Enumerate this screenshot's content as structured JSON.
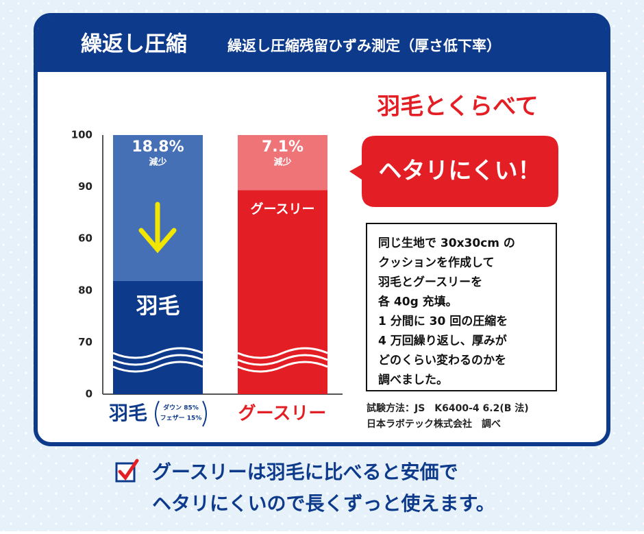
{
  "header": {
    "title": "繰返し圧縮",
    "subtitle": "繰返し圧縮残留ひずみ測定（厚さ低下率）"
  },
  "chart": {
    "axis_labels": [
      "100",
      "90",
      "60",
      "80",
      "70",
      "0"
    ],
    "bars": [
      {
        "name": "羽毛",
        "inner_label": "羽毛",
        "reduction": 18.8,
        "reduction_label": "18.8%",
        "reduction_text": "減少",
        "color": "#0d3a8a",
        "top_color": "#4670b6",
        "name_color": "#0d3a8a"
      },
      {
        "name": "グースリー",
        "inner_label": "グースリー",
        "reduction": 7.1,
        "reduction_label": "7.1%",
        "reduction_text": "減少",
        "color": "#e31e24",
        "top_color": "#ef7478",
        "name_color": "#e31e24"
      }
    ],
    "feather_mix": [
      "ダウン 85%",
      "フェザー 15%"
    ]
  },
  "callout": {
    "heading": "羽毛とくらべて",
    "bubble": "ヘタリにくい！",
    "description": [
      "同じ生地で 30x30cm の",
      "クッションを作成して",
      "羽毛とグースリーを",
      "各 40g 充填。",
      "1 分間に 30 回の圧縮を",
      "4 万回繰り返し、厚みが",
      "どのくらい変わるのかを",
      "調べました。"
    ],
    "notes": [
      "試験方法：JS　K6400-4 6.2(B 法)",
      "日本ラボテック株式会社　調べ"
    ]
  },
  "footer": {
    "lines": [
      "グースリーは羽毛に比べると安価で",
      "ヘタリにくいので長くずっと使えます。"
    ]
  }
}
